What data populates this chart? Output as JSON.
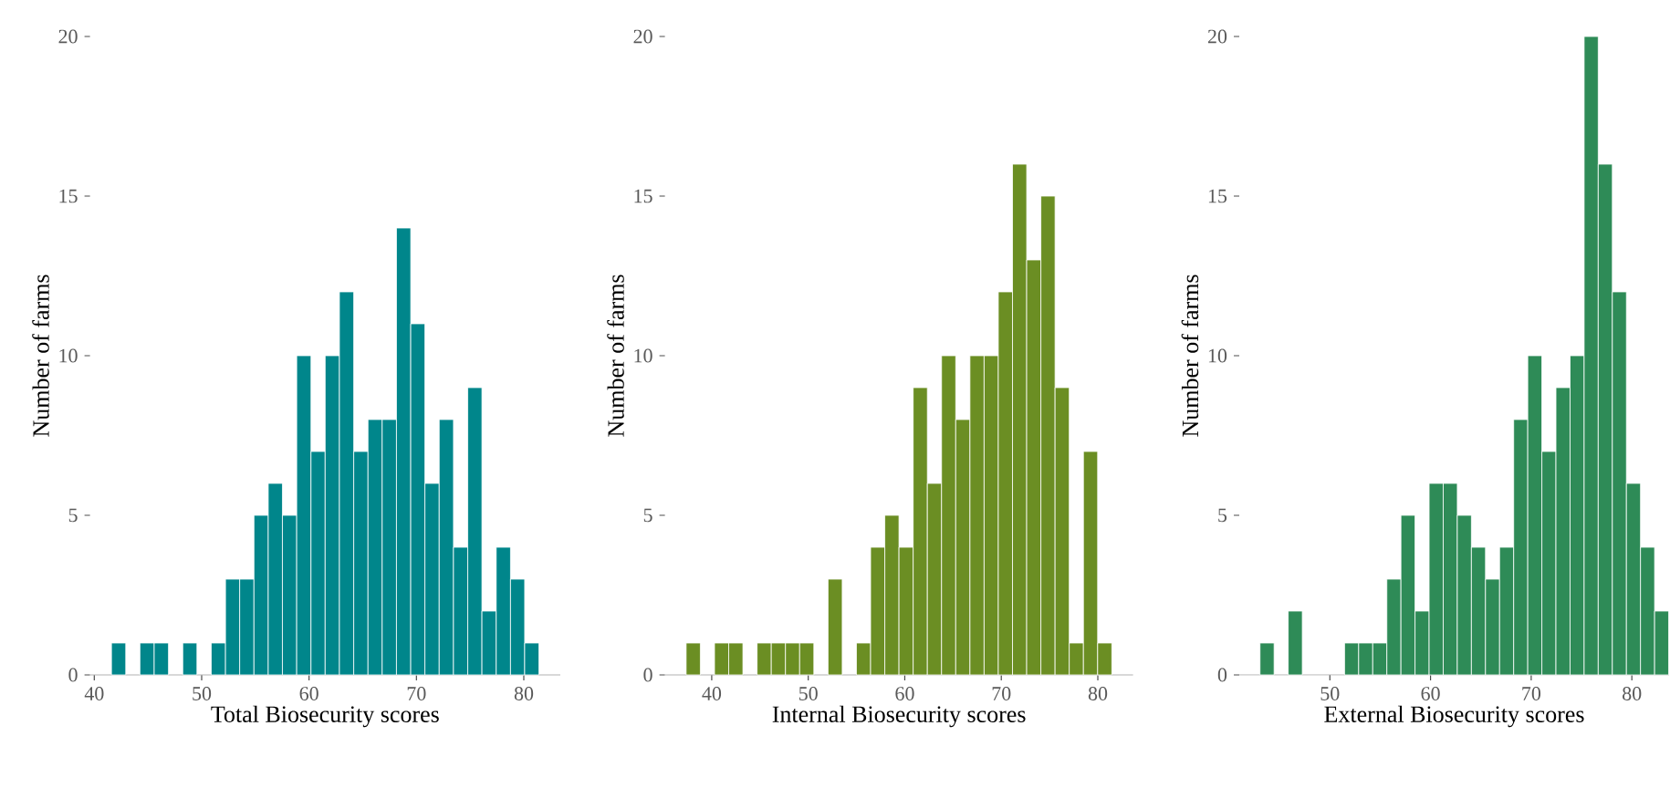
{
  "chart_data": [
    {
      "type": "histogram",
      "xlabel": "Total Biosecurity scores",
      "ylabel": "Number of farms",
      "color": "#00868b",
      "xlim": [
        39.6,
        83.4
      ],
      "ylim": [
        0,
        20
      ],
      "xticks": [
        40,
        50,
        60,
        70,
        80
      ],
      "yticks": [
        0,
        5,
        10,
        15,
        20
      ],
      "bins": [
        41.6,
        42.93,
        44.25,
        45.58,
        46.91,
        48.24,
        49.56,
        50.89,
        52.22,
        53.54,
        54.87,
        56.2,
        57.52,
        58.85,
        60.18,
        61.5,
        62.83,
        64.16,
        65.49,
        66.81,
        68.14,
        69.47,
        70.79,
        72.12,
        73.45,
        74.78,
        76.1,
        77.43,
        78.76,
        80.08,
        81.41
      ],
      "values": [
        1,
        0,
        1,
        1,
        0,
        1,
        0,
        1,
        3,
        3,
        5,
        6,
        5,
        10,
        7,
        10,
        12,
        7,
        8,
        8,
        14,
        11,
        6,
        8,
        4,
        9,
        2,
        4,
        3,
        1
      ]
    },
    {
      "type": "histogram",
      "xlabel": "Internal Biosecurity scores",
      "ylabel": "Number of farms",
      "color": "#6b8e23",
      "xlim": [
        35.15,
        83.65
      ],
      "ylim": [
        0,
        20
      ],
      "xticks": [
        40,
        50,
        60,
        70,
        80
      ],
      "yticks": [
        0,
        5,
        10,
        15,
        20
      ],
      "bins": [
        37.35,
        38.82,
        40.29,
        41.76,
        43.23,
        44.7,
        46.17,
        47.64,
        49.11,
        50.58,
        52.05,
        53.52,
        54.99,
        56.46,
        57.93,
        59.4,
        60.87,
        62.34,
        63.81,
        65.28,
        66.75,
        68.22,
        69.69,
        71.16,
        72.63,
        74.1,
        75.57,
        77.04,
        78.51,
        79.98,
        81.45
      ],
      "values": [
        1,
        0,
        1,
        1,
        0,
        1,
        1,
        1,
        1,
        0,
        3,
        0,
        1,
        4,
        5,
        4,
        9,
        6,
        10,
        8,
        10,
        10,
        12,
        16,
        13,
        15,
        9,
        1,
        7,
        1
      ]
    },
    {
      "type": "histogram",
      "xlabel": "External Biosecurity scores",
      "ylabel": "Number of farms",
      "color": "#2e8b57",
      "xlim": [
        41,
        83.7
      ],
      "ylim": [
        0,
        20
      ],
      "xticks": [
        50,
        60,
        70,
        80
      ],
      "yticks": [
        0,
        5,
        10,
        15,
        20
      ],
      "bins": [
        43.06,
        44.46,
        45.86,
        47.26,
        48.66,
        50.06,
        51.46,
        52.86,
        54.26,
        55.66,
        57.06,
        58.46,
        59.86,
        61.26,
        62.66,
        64.06,
        65.46,
        66.86,
        68.26,
        69.66,
        71.06,
        72.46,
        73.86,
        75.26,
        76.66,
        78.06,
        79.46,
        80.86,
        82.26,
        83.66
      ],
      "values": [
        1,
        0,
        2,
        0,
        0,
        0,
        1,
        1,
        1,
        3,
        5,
        2,
        6,
        6,
        5,
        4,
        3,
        4,
        8,
        10,
        7,
        9,
        10,
        20,
        16,
        12,
        6,
        4,
        2
      ]
    }
  ]
}
